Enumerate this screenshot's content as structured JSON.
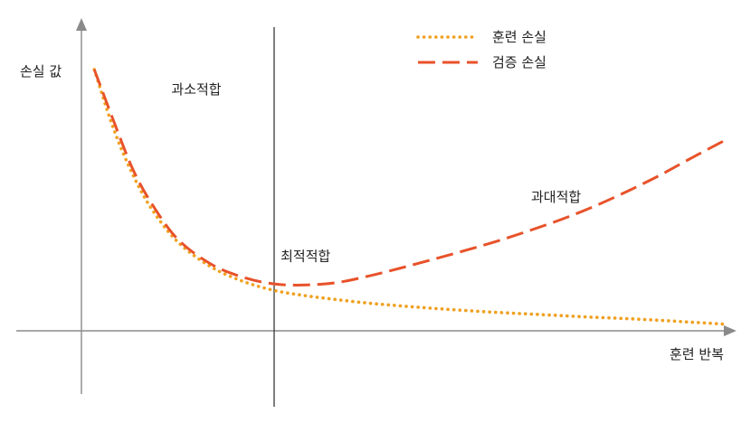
{
  "chart_data": {
    "type": "line",
    "title": "",
    "xlabel": "훈련 반복",
    "ylabel": "손실 값",
    "xlim": [
      0,
      100
    ],
    "ylim": [
      0,
      100
    ],
    "grid": false,
    "legend_position": "top-right",
    "x": [
      2,
      5,
      8,
      11,
      15,
      20,
      25,
      30,
      35,
      40,
      45,
      50,
      55,
      60,
      65,
      70,
      75,
      80,
      85,
      90,
      95,
      100
    ],
    "series": [
      {
        "name": "훈련 손실",
        "style": "dotted",
        "color": "#f0a020",
        "values": [
          97,
          75,
          58,
          45,
          33,
          24,
          18.5,
          15,
          13,
          11.5,
          10.2,
          9.2,
          8.3,
          7.5,
          6.8,
          6.2,
          5.6,
          5.0,
          4.5,
          3.9,
          3.2,
          2.5
        ]
      },
      {
        "name": "검증 손실",
        "style": "dashed",
        "color": "#e8522a",
        "values": [
          97,
          78,
          60,
          47,
          34,
          25,
          20,
          17.4,
          17,
          18,
          20.5,
          23.5,
          26.7,
          30,
          33.5,
          37.4,
          41.6,
          46.4,
          51.8,
          57.7,
          64.2,
          70.5
        ]
      }
    ],
    "vertical_marker_x": 30,
    "annotations": [
      {
        "text": "과소적합",
        "x": 14,
        "y": 88
      },
      {
        "text": "최적적합",
        "x": 31,
        "y": 26
      },
      {
        "text": "과대적합",
        "x": 70,
        "y": 48
      }
    ]
  }
}
